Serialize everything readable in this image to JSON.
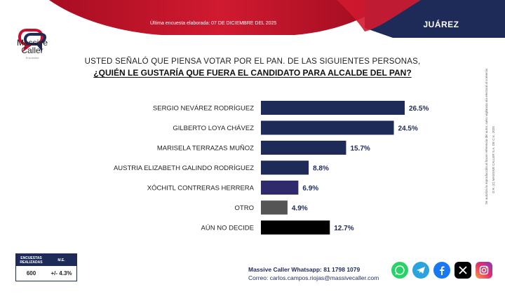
{
  "header": {
    "note": "Última encuesta elaborada: 07 DE DICIEMBRE DEL 2025",
    "city": "JUÁREZ"
  },
  "brand": {
    "name_line1": "Massive",
    "name_line2": "Caller",
    "tagline": "Encuestas"
  },
  "question": {
    "line1": "USTED SEÑALÓ QUE PIENSA VOTAR POR EL PAN. DE LAS SIGUIENTES PERSONAS,",
    "line2": "¿QUIÉN LE GUSTARÍA QUE FUERA EL CANDIDATO PARA ALCALDE DEL PAN?"
  },
  "side": {
    "line1": "D.R. (C) MASSIVE CALLER S.A. DE C.V., 2025",
    "line2": "Se autoriza la reproducción al hacer referencia del autor, salvo vigilancia vía electoral al comercio"
  },
  "chart_data": {
    "type": "bar",
    "orientation": "horizontal",
    "categories": [
      "SERGIO NEVÁREZ RODRÍGUEZ",
      "GILBERTO LOYA CHÁVEZ",
      "MARISELA TERRAZAS MUÑOZ",
      "AUSTRIA ELIZABETH GALINDO RODRÍGUEZ",
      "XÓCHITL CONTRERAS HERRERA",
      "OTRO",
      "AÚN NO DECIDE"
    ],
    "values": [
      26.5,
      24.5,
      15.7,
      8.8,
      6.9,
      4.9,
      12.7
    ],
    "labels": [
      "26.5%",
      "24.5%",
      "15.7%",
      "8.8%",
      "6.9%",
      "4.9%",
      "12.7%"
    ],
    "colors": [
      "#1e2a58",
      "#1e2a58",
      "#1e2a58",
      "#1e2a58",
      "#2f2a6b",
      "#555555",
      "#000000"
    ],
    "xlim": [
      0,
      26.5
    ],
    "grid": false
  },
  "stats": {
    "col1_header": "ENCUESTAS REALIZADAS",
    "col2_header": "M.E.",
    "col1_value": "600",
    "col2_value": "+/- 4.3%"
  },
  "footer": {
    "whatsapp": "Massive Caller Whatsapp: 81 1798 1079",
    "email": "Correo: carlos.campos.riojas@massivecaller.com"
  },
  "socials": [
    "whatsapp-icon",
    "telegram-icon",
    "facebook-icon",
    "x-icon",
    "instagram-icon"
  ],
  "theme": {
    "navy": "#1e2a58",
    "red": "#c8102e"
  }
}
